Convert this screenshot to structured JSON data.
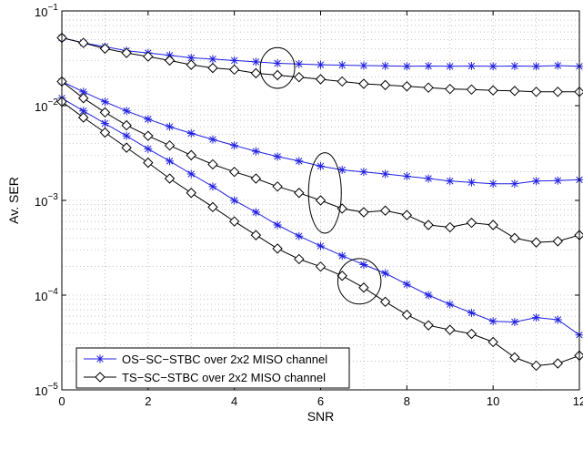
{
  "chart_data": {
    "type": "line",
    "xlabel": "SNR",
    "ylabel": "Av. SER",
    "xlim": [
      0,
      12
    ],
    "ylim": [
      1e-05,
      0.1
    ],
    "yscale": "log",
    "grid": true,
    "legend_position": "bottom-left",
    "x_ticks": [
      "0",
      "2",
      "4",
      "6",
      "8",
      "10",
      "12"
    ],
    "y_ticks": [
      {
        "base": "10",
        "exp": "−5",
        "value": 1e-05
      },
      {
        "base": "10",
        "exp": "−4",
        "value": 0.0001
      },
      {
        "base": "10",
        "exp": "−3",
        "value": 0.001
      },
      {
        "base": "10",
        "exp": "−2",
        "value": 0.01
      },
      {
        "base": "10",
        "exp": "−1",
        "value": 0.1
      }
    ],
    "series": [
      {
        "name": "OS−SC−STBC over 2x2 MISO channel",
        "color": "#2020e0",
        "marker": "star",
        "group": "top",
        "x": [
          0,
          0.5,
          1,
          1.5,
          2,
          2.5,
          3,
          3.5,
          4,
          4.5,
          5,
          5.5,
          6,
          6.5,
          7,
          7.5,
          8,
          8.5,
          9,
          9.5,
          10,
          10.5,
          11,
          11.5,
          12
        ],
        "y": [
          0.052,
          0.046,
          0.042,
          0.038,
          0.036,
          0.034,
          0.032,
          0.031,
          0.03,
          0.029,
          0.028,
          0.0275,
          0.027,
          0.0268,
          0.0265,
          0.0263,
          0.026,
          0.0262,
          0.026,
          0.0262,
          0.026,
          0.0262,
          0.026,
          0.0265,
          0.026
        ]
      },
      {
        "name": "TS−SC−STBC over 2x2 MISO channel",
        "color": "#000000",
        "marker": "diamond",
        "group": "top",
        "x": [
          0,
          0.5,
          1,
          1.5,
          2,
          2.5,
          3,
          3.5,
          4,
          4.5,
          5,
          5.5,
          6,
          6.5,
          7,
          7.5,
          8,
          8.5,
          9,
          9.5,
          10,
          10.5,
          11,
          11.5,
          12
        ],
        "y": [
          0.052,
          0.046,
          0.04,
          0.036,
          0.033,
          0.03,
          0.027,
          0.025,
          0.024,
          0.022,
          0.021,
          0.02,
          0.019,
          0.018,
          0.017,
          0.0165,
          0.016,
          0.0155,
          0.015,
          0.0148,
          0.0145,
          0.0143,
          0.014,
          0.014,
          0.014
        ]
      },
      {
        "name": "OS−SC−STBC over 2x2 MISO channel",
        "color": "#2020e0",
        "marker": "star",
        "group": "middle",
        "x": [
          0,
          0.5,
          1,
          1.5,
          2,
          2.5,
          3,
          3.5,
          4,
          4.5,
          5,
          5.5,
          6,
          6.5,
          7,
          7.5,
          8,
          8.5,
          9,
          9.5,
          10,
          10.5,
          11,
          11.5,
          12
        ],
        "y": [
          0.018,
          0.014,
          0.011,
          0.0088,
          0.0072,
          0.006,
          0.0051,
          0.0044,
          0.0038,
          0.0033,
          0.0029,
          0.0026,
          0.0023,
          0.0021,
          0.002,
          0.0019,
          0.0018,
          0.0017,
          0.0016,
          0.00155,
          0.0015,
          0.0015,
          0.0016,
          0.00162,
          0.00165
        ]
      },
      {
        "name": "TS−SC−STBC over 2x2 MISO channel",
        "color": "#000000",
        "marker": "diamond",
        "group": "middle",
        "x": [
          0,
          0.5,
          1,
          1.5,
          2,
          2.5,
          3,
          3.5,
          4,
          4.5,
          5,
          5.5,
          6,
          6.5,
          7,
          7.5,
          8,
          8.5,
          9,
          9.5,
          10,
          10.5,
          11,
          11.5,
          12
        ],
        "y": [
          0.018,
          0.012,
          0.0085,
          0.0062,
          0.0048,
          0.0038,
          0.003,
          0.0024,
          0.002,
          0.0017,
          0.0014,
          0.0012,
          0.001,
          0.00082,
          0.00075,
          0.00078,
          0.0007,
          0.00055,
          0.00052,
          0.00058,
          0.00055,
          0.0004,
          0.00036,
          0.00037,
          0.00043
        ]
      },
      {
        "name": "OS−SC−STBC over 2x2 MISO channel",
        "color": "#2020e0",
        "marker": "star",
        "group": "bottom",
        "x": [
          0,
          0.5,
          1,
          1.5,
          2,
          2.5,
          3,
          3.5,
          4,
          4.5,
          5,
          5.5,
          6,
          6.5,
          7,
          7.5,
          8,
          8.5,
          9,
          9.5,
          10,
          10.5,
          11,
          11.5,
          12
        ],
        "y": [
          0.012,
          0.0088,
          0.0065,
          0.0048,
          0.0035,
          0.0026,
          0.0019,
          0.0014,
          0.001,
          0.00075,
          0.00055,
          0.00042,
          0.00033,
          0.00026,
          0.00021,
          0.00017,
          0.00013,
          0.0001,
          8e-05,
          6.5e-05,
          5.3e-05,
          5.2e-05,
          5.8e-05,
          5.5e-05,
          3.8e-05
        ]
      },
      {
        "name": "TS−SC−STBC over 2x2 MISO channel",
        "color": "#000000",
        "marker": "diamond",
        "group": "bottom",
        "x": [
          0,
          0.5,
          1,
          1.5,
          2,
          2.5,
          3,
          3.5,
          4,
          4.5,
          5,
          5.5,
          6,
          6.5,
          7,
          7.5,
          8,
          8.5,
          9,
          9.5,
          10,
          10.5,
          11,
          11.5,
          12
        ],
        "y": [
          0.011,
          0.0075,
          0.0052,
          0.0036,
          0.0025,
          0.0017,
          0.0012,
          0.00085,
          0.0006,
          0.00043,
          0.00031,
          0.00024,
          0.0002,
          0.00016,
          0.00012,
          8.5e-05,
          6.2e-05,
          4.8e-05,
          4.3e-05,
          3.9e-05,
          3.2e-05,
          2.2e-05,
          1.8e-05,
          1.9e-05,
          2.3e-05
        ]
      }
    ],
    "ellipses": [
      {
        "cx": 5.0,
        "cy": 0.025,
        "rx_data": 0.4,
        "decades": 0.43
      },
      {
        "cx": 6.1,
        "cy": 0.0012,
        "rx_data": 0.38,
        "decades": 0.85
      },
      {
        "cx": 6.9,
        "cy": 0.00014,
        "rx_data": 0.5,
        "decades": 0.48
      }
    ],
    "legend": [
      {
        "label": "OS−SC−STBC over 2x2 MISO channel",
        "color": "#2020e0",
        "marker": "star"
      },
      {
        "label": "TS−SC−STBC over 2x2 MISO channel",
        "color": "#000000",
        "marker": "diamond"
      }
    ]
  }
}
